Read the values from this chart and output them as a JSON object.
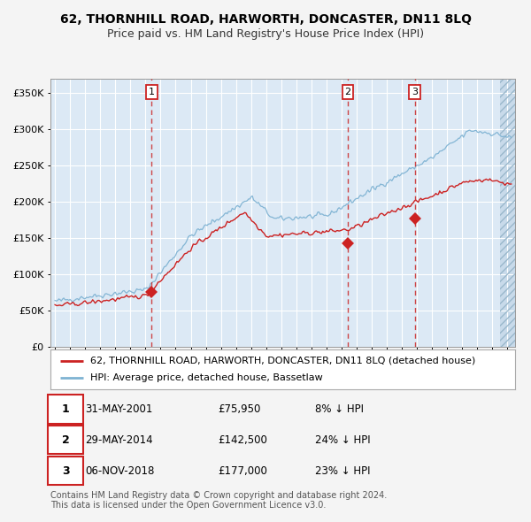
{
  "title": "62, THORNHILL ROAD, HARWORTH, DONCASTER, DN11 8LQ",
  "subtitle": "Price paid vs. HM Land Registry's House Price Index (HPI)",
  "xlim": [
    1994.7,
    2025.5
  ],
  "ylim": [
    0,
    370000
  ],
  "yticks": [
    0,
    50000,
    100000,
    150000,
    200000,
    250000,
    300000,
    350000
  ],
  "ytick_labels": [
    "£0",
    "£50K",
    "£100K",
    "£150K",
    "£200K",
    "£250K",
    "£300K",
    "£350K"
  ],
  "fig_bg_color": "#f4f4f4",
  "plot_bg_color": "#dce9f5",
  "grid_color": "#ffffff",
  "hpi_line_color": "#7fb3d3",
  "price_line_color": "#cc2222",
  "sale_marker_color": "#cc2222",
  "sale_dates": [
    2001.413,
    2014.413,
    2018.844
  ],
  "sale_prices": [
    75950,
    142500,
    177000
  ],
  "sale_labels": [
    "1",
    "2",
    "3"
  ],
  "vline_color": "#cc3333",
  "hatch_start": 2024.5,
  "legend_label_price": "62, THORNHILL ROAD, HARWORTH, DONCASTER, DN11 8LQ (detached house)",
  "legend_label_hpi": "HPI: Average price, detached house, Bassetlaw",
  "table_entries": [
    {
      "label": "1",
      "date": "31-MAY-2001",
      "price": "£75,950",
      "pct": "8% ↓ HPI"
    },
    {
      "label": "2",
      "date": "29-MAY-2014",
      "price": "£142,500",
      "pct": "24% ↓ HPI"
    },
    {
      "label": "3",
      "date": "06-NOV-2018",
      "price": "£177,000",
      "pct": "23% ↓ HPI"
    }
  ],
  "footnote": "Contains HM Land Registry data © Crown copyright and database right 2024.\nThis data is licensed under the Open Government Licence v3.0.",
  "title_fontsize": 10,
  "subtitle_fontsize": 9,
  "tick_fontsize": 8,
  "legend_fontsize": 8,
  "table_fontsize": 8.5,
  "footnote_fontsize": 7
}
